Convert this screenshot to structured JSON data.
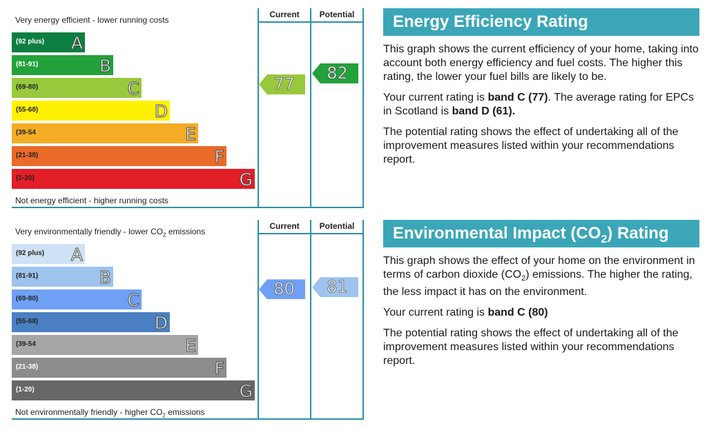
{
  "energy": {
    "top_caption": "Very energy efficient - lower running costs",
    "bottom_caption": "Not energy efficient - higher running costs",
    "col_current": "Current",
    "col_potential": "Potential",
    "heading": "Energy Efficiency Rating",
    "p1": "This graph shows the current efficiency of your home, taking into account both energy efficiency and fuel costs. The higher this rating, the lower your fuel bills are likely to be.",
    "p2_a": "Your current rating is ",
    "p2_b": "band C (77)",
    "p2_c": ". The average rating for EPCs in Scotland is ",
    "p2_d": "band D (61).",
    "p3": "The potential rating shows the effect of undertaking all of the improvement measures listed within your recommendations report."
  },
  "environment": {
    "top_caption_a": "Very environmentally friendly - lower CO",
    "top_caption_sub": "2",
    "top_caption_b": " emissions",
    "bottom_caption_a": "Not environmentally friendly - higher CO",
    "bottom_caption_sub": "2",
    "bottom_caption_b": " emissions",
    "col_current": "Current",
    "col_potential": "Potential",
    "heading_a": "Environmental Impact (CO",
    "heading_sub": "2",
    "heading_b": ") Rating",
    "p1_a": "This graph shows the effect of your home on the environment in terms of carbon dioxide (CO",
    "p1_sub": "2",
    "p1_b": ") emissions. The higher the rating, the less impact it has on the environment.",
    "p2_a": "Your current rating is ",
    "p2_b": "band C (80)",
    "p3": "The potential rating shows the effect of undertaking all of the improvement measures listed within your recommendations report."
  },
  "chart_data": [
    {
      "type": "bar",
      "bands": [
        {
          "letter": "A",
          "range": "(92 plus)",
          "color": "#0c7e40",
          "text_color": "#ffffff"
        },
        {
          "letter": "B",
          "range": "(81-91)",
          "color": "#23a13b",
          "text_color": "#ffffff"
        },
        {
          "letter": "C",
          "range": "(69-80)",
          "color": "#98c93c",
          "text_color": "#222222"
        },
        {
          "letter": "D",
          "range": "(55-68)",
          "color": "#fff200",
          "text_color": "#222222"
        },
        {
          "letter": "E",
          "range": "(39-54",
          "color": "#f4ac25",
          "text_color": "#222222"
        },
        {
          "letter": "F",
          "range": "(21-38)",
          "color": "#ea6a28",
          "text_color": "#222222"
        },
        {
          "letter": "G",
          "range": "(1-20)",
          "color": "#e21e26",
          "text_color": "#222222"
        }
      ],
      "current": {
        "value": 77,
        "band": "C",
        "color": "#98c93c"
      },
      "potential": {
        "value": 82,
        "band": "B",
        "color": "#23a13b"
      }
    },
    {
      "type": "bar",
      "bands": [
        {
          "letter": "A",
          "range": "(92 plus)",
          "color": "#cfe1f4",
          "text_color": "#222222"
        },
        {
          "letter": "B",
          "range": "(81-91)",
          "color": "#9dc3ee",
          "text_color": "#222222"
        },
        {
          "letter": "C",
          "range": "(69-80)",
          "color": "#6fa0f5",
          "text_color": "#222222"
        },
        {
          "letter": "D",
          "range": "(55-68)",
          "color": "#4a80c2",
          "text_color": "#222222"
        },
        {
          "letter": "E",
          "range": "(39-54",
          "color": "#a6a6a6",
          "text_color": "#222222"
        },
        {
          "letter": "F",
          "range": "(21-38)",
          "color": "#8c8c8c",
          "text_color": "#ffffff"
        },
        {
          "letter": "G",
          "range": "(1-20)",
          "color": "#676767",
          "text_color": "#ffffff"
        }
      ],
      "current": {
        "value": 80,
        "band": "C",
        "color": "#6fa0f5"
      },
      "potential": {
        "value": 81,
        "band": "B",
        "color": "#9dc3ee"
      }
    }
  ]
}
